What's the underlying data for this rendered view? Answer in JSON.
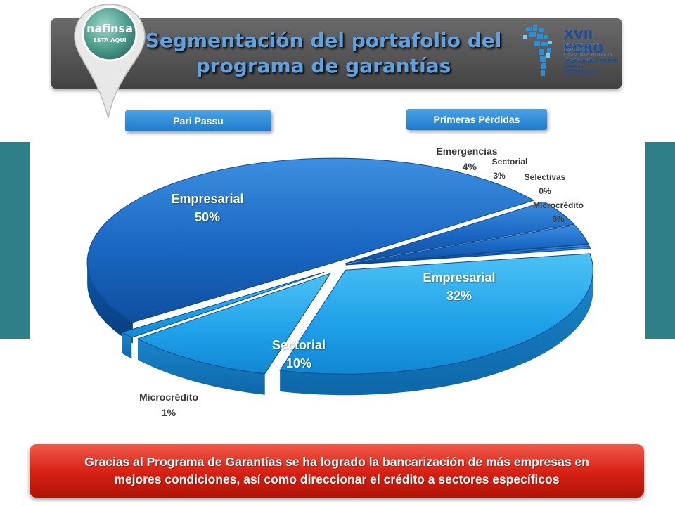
{
  "header": {
    "title": "Segmentación del portafolio del programa de garantías",
    "logo_left": {
      "brand": "nafinsa",
      "tagline": "ESTÁ AQUÍ"
    },
    "logo_right": {
      "brand_line1": "XVII FORO",
      "brand_line2": "IBEROAMERICANO",
      "subtitle": "DE SISTEMAS DE GARANTÍA Y FINANCIAMIENTO PARA MICRO Y PYME",
      "tagline": "TRABAJANDO EN RED PARA EL DESARROLLO"
    }
  },
  "tabs": {
    "left": "Pari Passu",
    "right": "Primeras Pérdidas"
  },
  "colors": {
    "pari_passu": "#1f6fc9",
    "primeras_perdidas": "#29a6ea",
    "banner": "#d51f12",
    "title": "#5ea3e0"
  },
  "chart_data": {
    "type": "pie",
    "groups": [
      "Pari Passu",
      "Primeras Pérdidas"
    ],
    "slices": [
      {
        "name": "Empresarial",
        "value": 50,
        "label": "50%",
        "group": "Pari Passu"
      },
      {
        "name": "Emergencias",
        "value": 4,
        "label": "4%",
        "group": "Pari Passu"
      },
      {
        "name": "Sectorial",
        "value": 3,
        "label": "3%",
        "group": "Pari Passu"
      },
      {
        "name": "Selectivas",
        "value": 0,
        "label": "0%",
        "group": "Pari Passu"
      },
      {
        "name": "Microcrédito",
        "value": 0,
        "label": "0%",
        "group": "Pari Passu"
      },
      {
        "name": "Empresarial",
        "value": 32,
        "label": "32%",
        "group": "Primeras Pérdidas"
      },
      {
        "name": "Sectorial",
        "value": 10,
        "label": "10%",
        "group": "Primeras Pérdidas"
      },
      {
        "name": "Microcrédito",
        "value": 1,
        "label": "1%",
        "group": "Primeras Pérdidas"
      }
    ]
  },
  "banner": {
    "line1": "Gracias al Programa de Garantías se ha logrado la bancarización de más empresas en",
    "line2": "mejores condiciones, así como direccionar el crédito a sectores específicos"
  }
}
